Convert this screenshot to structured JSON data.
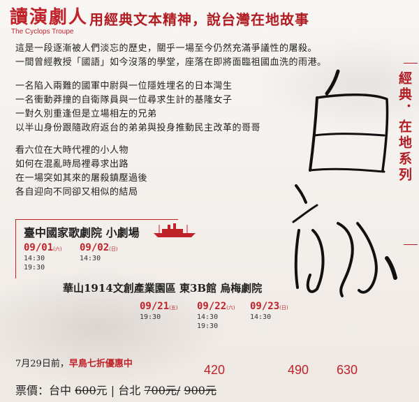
{
  "logo": {
    "cn": "讀演劇人",
    "en": "The Cyclops Troupe"
  },
  "headline": "用經典文本精神，說台灣在地故事",
  "intro": [
    "這是一段逐漸被人們淡忘的歷史，關乎一場至今仍然充滿爭議性的屠殺。",
    "一間曾經教授「國語」如今沒落的學堂，座落在即將面臨祖國血洗的雨港。"
  ],
  "characters": [
    "一名陷入兩難的國軍中尉與一位隱姓埋名的日本灣生",
    "一名衝動莽撞的自衛隊員與一位尋求生計的基隆女子",
    "一對久別重逢但是立場相左的兄弟",
    "以半山身份跟隨政府返台的弟弟與投身推動民主改革的哥哥"
  ],
  "outro": [
    "看六位在大時代裡的小人物",
    "如何在混亂時局裡尋求出路",
    "在一場突如其來的屠殺鎮壓過後",
    "各自迎向不同卻又相似的結局"
  ],
  "series_label": "經典．在地系列",
  "title_calligraphy": "白話",
  "venue1": {
    "name": "臺中國家歌劇院 小劇場",
    "dates": [
      {
        "date": "09/01",
        "day": "(六)",
        "times": [
          "14:30",
          "19:30"
        ]
      },
      {
        "date": "09/02",
        "day": "(日)",
        "times": [
          "14:30"
        ]
      }
    ]
  },
  "venue2": {
    "name": "華山1914文創產業園區 東3B館 烏梅劇院",
    "dates": [
      {
        "date": "09/21",
        "day": "(五)",
        "times": [
          "19:30"
        ]
      },
      {
        "date": "09/22",
        "day": "(六)",
        "times": [
          "14:30",
          "19:30"
        ]
      },
      {
        "date": "09/23",
        "day": "(日)",
        "times": [
          "14:30"
        ]
      }
    ]
  },
  "early_bird": {
    "prefix": "7月29日前，",
    "highlight": "早鳥七折優惠中"
  },
  "prices": {
    "label": "票價：",
    "taichung_label": "台中",
    "taichung_old": "600",
    "taichung_new": "420",
    "unit": "元",
    "sep": "|",
    "taipei_label": "台北",
    "taipei_old1": "700元/",
    "taipei_new1": "490",
    "taipei_old2": "900元",
    "taipei_new2": "630"
  },
  "colors": {
    "accent": "#c0222a"
  }
}
